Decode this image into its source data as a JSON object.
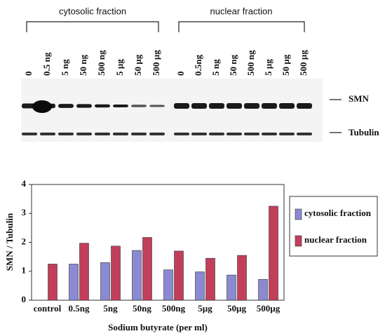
{
  "blot": {
    "groups": [
      {
        "title": "cytosolic fraction",
        "lanes": [
          "0",
          "0.5 ng",
          "5 ng",
          "50 ng",
          "500 ng",
          "5 µg",
          "50 µg",
          "500 µg"
        ]
      },
      {
        "title": "nuclear fraction",
        "lanes": [
          "0",
          "0.5ng",
          "5 ng",
          "50 ng",
          "500 ng",
          "5 µg",
          "50 µg",
          "500 µg"
        ]
      }
    ],
    "bands": [
      "SMN",
      "Tubulin"
    ]
  },
  "chart_data": {
    "type": "bar",
    "categories": [
      "control",
      "0.5ng",
      "5ng",
      "50ng",
      "500ng",
      "5µg",
      "50µg",
      "500µg"
    ],
    "series": [
      {
        "name": "cytosolic fraction",
        "color": "#8a8ad2",
        "values": [
          null,
          1.25,
          1.3,
          1.72,
          1.05,
          0.98,
          0.87,
          0.72
        ]
      },
      {
        "name": "nuclear fraction",
        "color": "#c23f5c",
        "values": [
          1.25,
          1.97,
          1.87,
          2.17,
          1.7,
          1.45,
          1.55,
          3.25
        ]
      }
    ],
    "xlabel": "Sodium butyrate (per ml)",
    "ylabel": "SMN / Tubulin",
    "ylim": [
      0,
      4
    ],
    "yticks": [
      0,
      1,
      2,
      3,
      4
    ],
    "legend": "right"
  }
}
